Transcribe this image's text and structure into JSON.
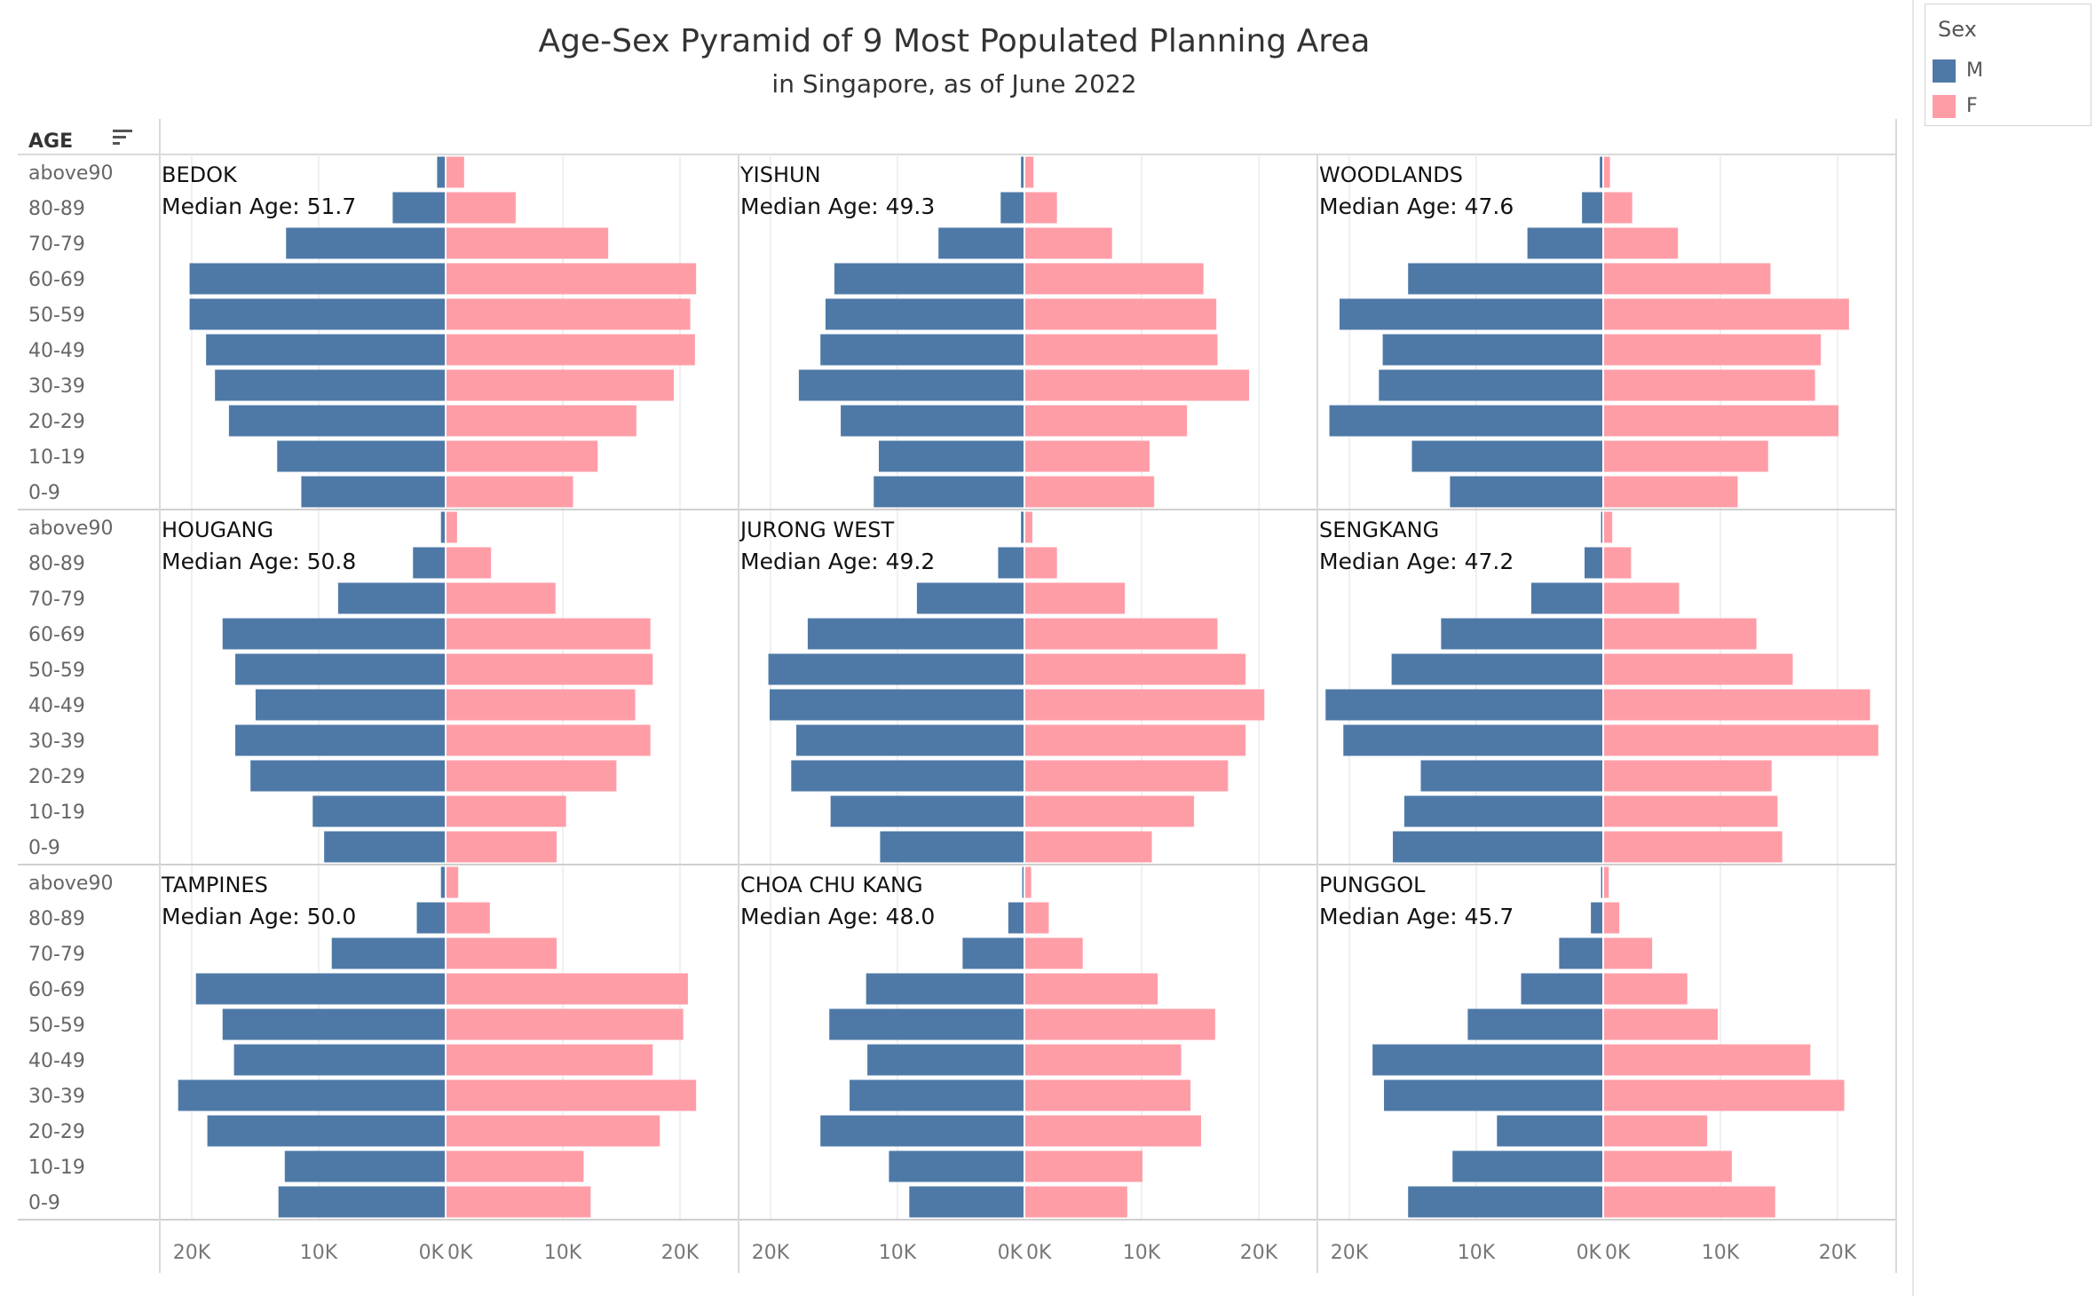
{
  "title": "Age-Sex Pyramid of 9 Most Populated Planning Area",
  "subtitle": "in Singapore, as of June 2022",
  "row_header": "AGE",
  "legend": {
    "title": "Sex",
    "items": [
      {
        "label": "M",
        "color": "#4e79a7"
      },
      {
        "label": "F",
        "color": "#ff9da7"
      }
    ]
  },
  "colors": {
    "male": "#4e79a7",
    "female": "#ff9da7"
  },
  "median_label": "Median Age:",
  "chart_data": {
    "type": "bar",
    "orientation": "horizontal",
    "age_groups": [
      "above90",
      "80-89",
      "70-79",
      "60-69",
      "50-59",
      "40-49",
      "30-39",
      "20-29",
      "10-19",
      "0-9"
    ],
    "x_axis": {
      "male_ticks": [
        "20K",
        "10K",
        "0K"
      ],
      "female_ticks": [
        "0K",
        "10K",
        "20K"
      ],
      "male_range": [
        0,
        22000
      ],
      "female_range": [
        0,
        24000
      ]
    },
    "grid": true,
    "legend_position": "top-right",
    "areas": [
      {
        "name": "BEDOK",
        "median_age": "51.7",
        "male": [
          600,
          4100,
          12500,
          20100,
          20100,
          18800,
          18100,
          17000,
          13200,
          11300
        ],
        "female": [
          1500,
          5900,
          13800,
          21300,
          20800,
          21200,
          19400,
          16200,
          12900,
          10800
        ]
      },
      {
        "name": "YISHUN",
        "median_age": "49.3",
        "male": [
          200,
          1800,
          6700,
          14900,
          15600,
          16000,
          17700,
          14400,
          11400,
          11800
        ],
        "female": [
          700,
          2700,
          7400,
          15200,
          16300,
          16400,
          19100,
          13800,
          10600,
          11000
        ]
      },
      {
        "name": "WOODLANDS",
        "median_age": "47.6",
        "male": [
          200,
          1600,
          5900,
          15300,
          20700,
          17300,
          17600,
          21500,
          15000,
          12000
        ],
        "female": [
          500,
          2400,
          6300,
          14200,
          20900,
          18500,
          18000,
          20000,
          14000,
          11400
        ]
      },
      {
        "name": "HOUGANG",
        "median_age": "50.8",
        "male": [
          300,
          2500,
          8400,
          17500,
          16500,
          14900,
          16500,
          15300,
          10400,
          9500
        ],
        "female": [
          900,
          3800,
          9300,
          17400,
          17600,
          16100,
          17400,
          14500,
          10200,
          9400
        ]
      },
      {
        "name": "JURONG WEST",
        "median_age": "49.2",
        "male": [
          200,
          2000,
          8400,
          17000,
          20100,
          20000,
          17900,
          18300,
          15200,
          11300
        ],
        "female": [
          600,
          2700,
          8500,
          16400,
          18800,
          20400,
          18800,
          17300,
          14400,
          10800
        ]
      },
      {
        "name": "SENGKANG",
        "median_age": "47.2",
        "male": [
          100,
          1400,
          5600,
          12700,
          16600,
          21800,
          20400,
          14300,
          15600,
          16500
        ],
        "female": [
          700,
          2300,
          6400,
          13000,
          16100,
          22700,
          23400,
          14300,
          14800,
          15200
        ]
      },
      {
        "name": "TAMPINES",
        "median_age": "50.0",
        "male": [
          300,
          2200,
          8900,
          19600,
          17500,
          16600,
          21000,
          18700,
          12600,
          13100
        ],
        "female": [
          1000,
          3700,
          9400,
          20600,
          20200,
          17600,
          21300,
          18200,
          11700,
          12300
        ]
      },
      {
        "name": "CHOA CHU KANG",
        "median_age": "48.0",
        "male": [
          100,
          1200,
          4800,
          12400,
          15300,
          12300,
          13700,
          16000,
          10600,
          9000
        ],
        "female": [
          500,
          2000,
          4900,
          11300,
          16200,
          13300,
          14100,
          15000,
          10000,
          8700
        ]
      },
      {
        "name": "PUNGGOL",
        "median_age": "45.7",
        "male": [
          100,
          900,
          3400,
          6400,
          10600,
          18100,
          17200,
          8300,
          11800,
          15300
        ],
        "female": [
          400,
          1300,
          4100,
          7100,
          9700,
          17600,
          20500,
          8800,
          10900,
          14600
        ]
      }
    ]
  }
}
